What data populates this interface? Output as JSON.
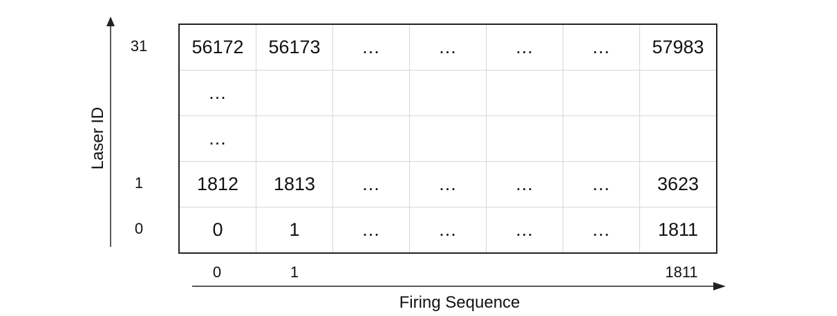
{
  "y_axis_title": "Laser ID",
  "x_axis_title": "Firing Sequence",
  "row_labels": [
    "31",
    "1",
    "0"
  ],
  "col_labels": [
    "0",
    "1",
    "1811"
  ],
  "grid": [
    [
      "56172",
      "56173",
      "...",
      "...",
      "...",
      "...",
      "57983"
    ],
    [
      "...",
      "",
      "",
      "",
      "",
      "",
      ""
    ],
    [
      "...",
      "",
      "",
      "",
      "",
      "",
      ""
    ],
    [
      "1812",
      "1813",
      "...",
      "...",
      "...",
      "...",
      "3623"
    ],
    [
      "0",
      "1",
      "...",
      "...",
      "...",
      "...",
      "1811"
    ]
  ]
}
